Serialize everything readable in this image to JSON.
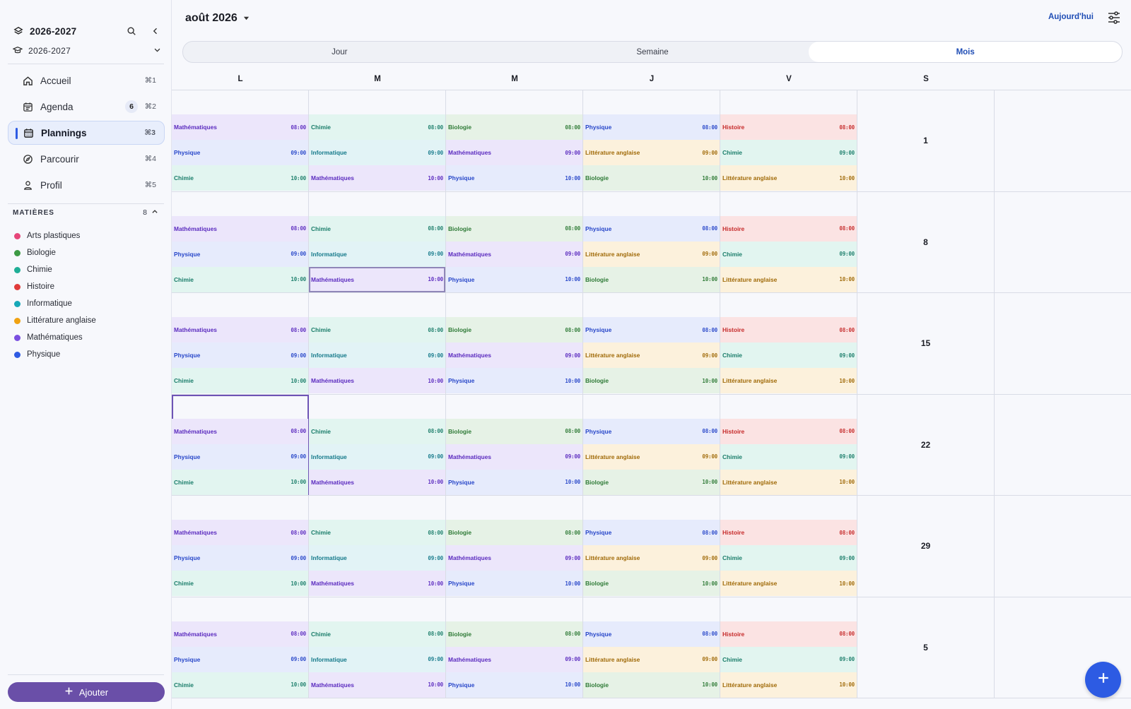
{
  "sidebar": {
    "year_title": "2026-2027",
    "year_sub": "2026-2027",
    "nav": [
      {
        "name": "sidebar-item-accueil",
        "icon": "home-icon",
        "label": "Accueil",
        "shortcut": "⌘1",
        "badge": ""
      },
      {
        "name": "sidebar-item-agenda",
        "icon": "calendar-list-icon",
        "label": "Agenda",
        "shortcut": "⌘2",
        "badge": "6"
      },
      {
        "name": "sidebar-item-plannings",
        "icon": "calendar-grid-icon",
        "label": "Plannings",
        "shortcut": "⌘3",
        "badge": "",
        "active": true
      },
      {
        "name": "sidebar-item-parcourir",
        "icon": "compass-icon",
        "label": "Parcourir",
        "shortcut": "⌘4",
        "badge": ""
      },
      {
        "name": "sidebar-item-profil",
        "icon": "user-icon",
        "label": "Profil",
        "shortcut": "⌘5",
        "badge": ""
      }
    ],
    "subjects_title": "MATIÈRES",
    "subjects_count": "8",
    "subjects": [
      {
        "label": "Arts plastiques",
        "color": "#e6467a"
      },
      {
        "label": "Biologie",
        "color": "#3d9a44"
      },
      {
        "label": "Chimie",
        "color": "#1fae96"
      },
      {
        "label": "Histoire",
        "color": "#e03b3b"
      },
      {
        "label": "Informatique",
        "color": "#17a8b8"
      },
      {
        "label": "Littérature anglaise",
        "color": "#f0a212"
      },
      {
        "label": "Mathématiques",
        "color": "#7a4fe0"
      },
      {
        "label": "Physique",
        "color": "#2f5be3"
      }
    ],
    "add_label": "Ajouter"
  },
  "header": {
    "month": "août 2026",
    "today_label": "Aujourd'hui"
  },
  "view_tabs": [
    {
      "label": "Jour",
      "active": false
    },
    {
      "label": "Semaine",
      "active": false
    },
    {
      "label": "Mois",
      "active": true
    }
  ],
  "weekdays": [
    "L",
    "M",
    "M",
    "J",
    "V",
    "S"
  ],
  "saturday_dates": [
    "1",
    "8",
    "15",
    "22",
    "29",
    "5"
  ],
  "selected_cell": {
    "week": 3,
    "day": 0
  },
  "selected_event": {
    "week": 1,
    "day": 1,
    "slot": 2
  },
  "day_events": [
    [
      {
        "s": "Mathématiques",
        "t": "08:00"
      },
      {
        "s": "Physique",
        "t": "09:00"
      },
      {
        "s": "Chimie",
        "t": "10:00"
      }
    ],
    [
      {
        "s": "Chimie",
        "t": "08:00"
      },
      {
        "s": "Informatique",
        "t": "09:00"
      },
      {
        "s": "Mathématiques",
        "t": "10:00"
      }
    ],
    [
      {
        "s": "Biologie",
        "t": "08:00"
      },
      {
        "s": "Mathématiques",
        "t": "09:00"
      },
      {
        "s": "Physique",
        "t": "10:00"
      }
    ],
    [
      {
        "s": "Physique",
        "t": "08:00"
      },
      {
        "s": "Littérature anglaise",
        "t": "09:00"
      },
      {
        "s": "Biologie",
        "t": "10:00"
      }
    ],
    [
      {
        "s": "Histoire",
        "t": "08:00"
      },
      {
        "s": "Chimie",
        "t": "09:00"
      },
      {
        "s": "Littérature anglaise",
        "t": "10:00"
      }
    ]
  ],
  "subject_styles": {
    "Mathématiques": {
      "bg": "#ece6fb",
      "fg": "#5b2bbf"
    },
    "Physique": {
      "bg": "#e6ebfc",
      "fg": "#2746c9"
    },
    "Chimie": {
      "bg": "#e2f5f0",
      "fg": "#1a7d6a"
    },
    "Informatique": {
      "bg": "#e2f3f6",
      "fg": "#14798a"
    },
    "Biologie": {
      "bg": "#e6f2e6",
      "fg": "#2e7a36"
    },
    "Littérature anglaise": {
      "bg": "#fcf1dc",
      "fg": "#a06a08"
    },
    "Histoire": {
      "bg": "#fbe3e3",
      "fg": "#c62b2b"
    }
  }
}
